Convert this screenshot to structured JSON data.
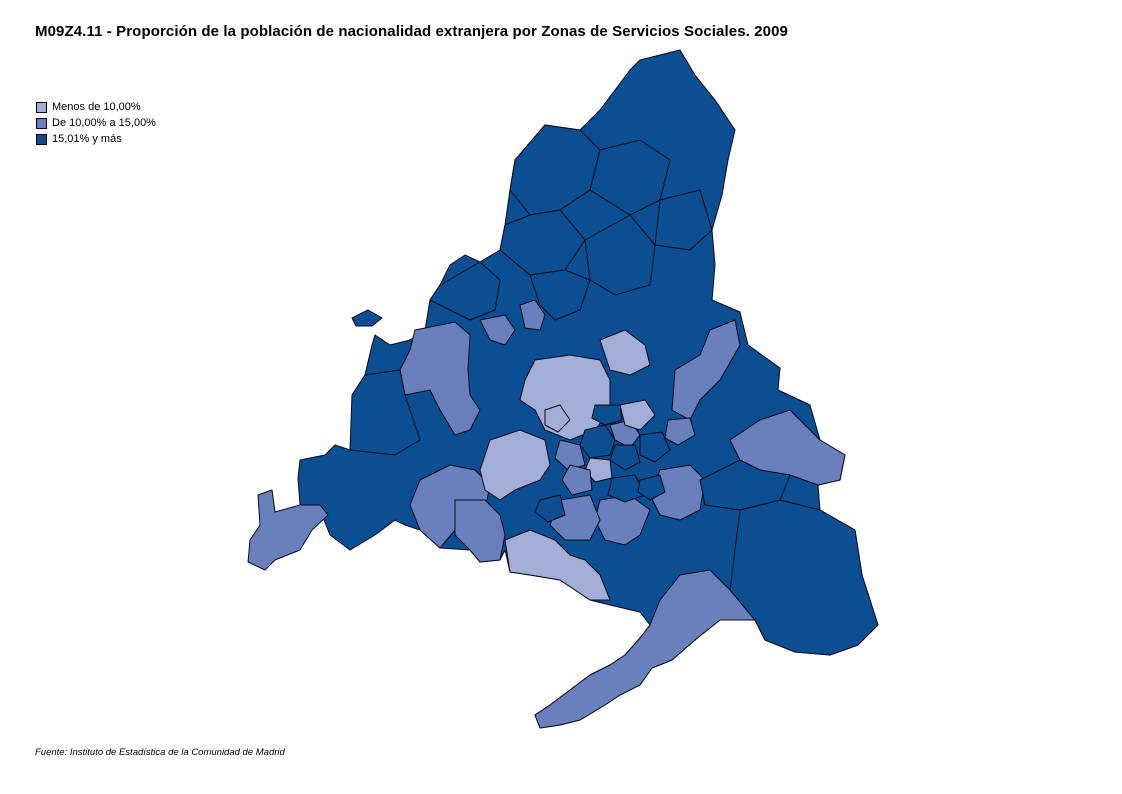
{
  "title": "M09Z4.11 - Proporción de la población de nacionalidad extranjera por Zonas de Servicios Sociales. 2009",
  "legend": [
    {
      "label": "Menos de 10,00%",
      "color": "#a3aed6"
    },
    {
      "label": "De 10,00% a 15,00%",
      "color": "#6a80bd"
    },
    {
      "label": "15,01% y más",
      "color": "#0b4f92"
    }
  ],
  "source": "Fuente: Instituto de Estadística de la Comunidad de Madrid",
  "map": {
    "region": "Comunidad de Madrid",
    "zones_colored_by": "legend class"
  }
}
